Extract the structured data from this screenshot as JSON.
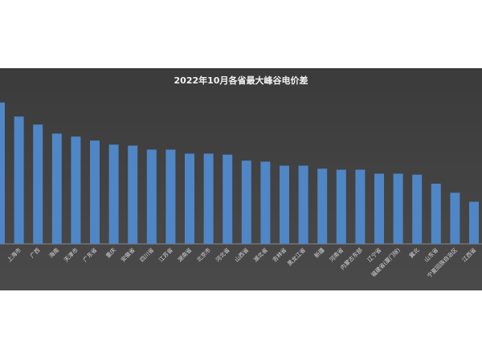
{
  "chart_data": {
    "type": "bar",
    "title": "2022年10月各省最大峰谷电价差",
    "categories": [
      null,
      "上海市",
      "广西",
      "海南",
      "天津市",
      "广东省",
      "重庆",
      "安徽省",
      "四川省",
      "江苏省",
      "湖南省",
      "北京市",
      "河北省",
      "山西省",
      "湖北省",
      "吉林省",
      "黑龙江省",
      "新疆",
      "河南省",
      "内蒙古东部",
      "辽宁省",
      "福建省(厦门除)",
      "冀北",
      "山东省",
      "宁夏回族自治区",
      "江西省"
    ],
    "values": [
      1.41,
      1.27,
      1.19,
      1.1,
      1.07,
      1.03,
      0.99,
      0.98,
      0.94,
      0.94,
      0.9,
      0.9,
      0.89,
      0.83,
      0.82,
      0.78,
      0.78,
      0.75,
      0.74,
      0.74,
      0.7,
      0.7,
      0.69,
      0.6,
      0.51,
      0.42
    ],
    "color": "#4f86c6",
    "ylim": [
      0,
      1.76
    ]
  }
}
